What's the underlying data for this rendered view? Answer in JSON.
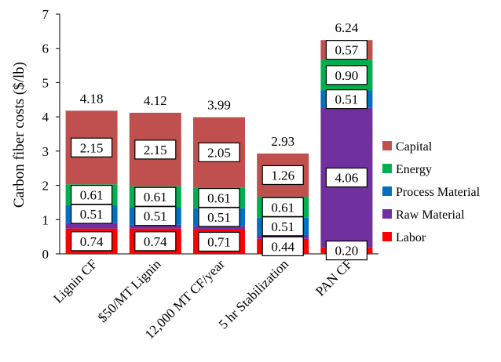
{
  "chart_data": {
    "type": "bar",
    "stacked": true,
    "ylabel": "Carbon fiber costs ($/lb)",
    "xlabel": "",
    "ylim": [
      0,
      7
    ],
    "yticks": [
      "0",
      "1",
      "2",
      "3",
      "4",
      "5",
      "6",
      "7"
    ],
    "grid": false,
    "legend_position": "right",
    "categories": [
      "Lignin CF",
      "$50/MT Lignin",
      "12,000 MT CF/year",
      "5 hr Stabilization",
      "PAN CF"
    ],
    "totals": [
      "4.18",
      "4.12",
      "3.99",
      "2.93",
      "6.24"
    ],
    "series": [
      {
        "name": "Labor",
        "color": "#ff0000",
        "values": [
          0.74,
          0.74,
          0.71,
          0.44,
          0.2
        ],
        "labels": [
          "0.74",
          "0.74",
          "0.71",
          "0.44",
          "0.20"
        ]
      },
      {
        "name": "Raw Material",
        "color": "#7030a0",
        "values": [
          0.17,
          0.11,
          0.11,
          0.11,
          4.06
        ],
        "labels": [
          "",
          "",
          "",
          "",
          "4.06"
        ]
      },
      {
        "name": "Process Material",
        "color": "#0070c0",
        "values": [
          0.51,
          0.51,
          0.51,
          0.51,
          0.51
        ],
        "labels": [
          "0.51",
          "0.51",
          "0.51",
          "0.51",
          "0.51"
        ]
      },
      {
        "name": "Energy",
        "color": "#00b050",
        "values": [
          0.61,
          0.61,
          0.61,
          0.61,
          0.9
        ],
        "labels": [
          "0.61",
          "0.61",
          "0.61",
          "0.61",
          "0.90"
        ]
      },
      {
        "name": "Capital",
        "color": "#c0504d",
        "values": [
          2.15,
          2.15,
          2.05,
          1.26,
          0.57
        ],
        "labels": [
          "2.15",
          "2.15",
          "2.05",
          "1.26",
          "0.57"
        ]
      }
    ],
    "legend_order": [
      "Capital",
      "Energy",
      "Process Material",
      "Raw Material",
      "Labor"
    ]
  }
}
